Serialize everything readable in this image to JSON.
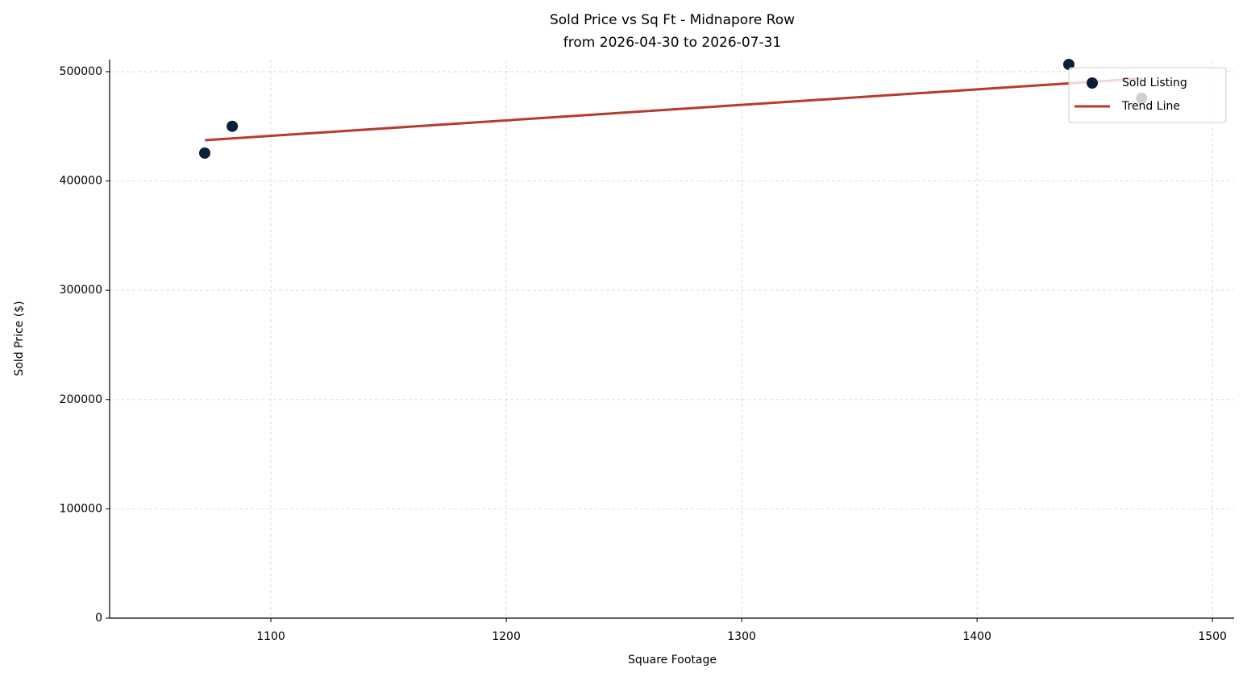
{
  "chart_data": {
    "type": "scatter",
    "title": "Sold Price vs Sq Ft - Midnapore Row",
    "subtitle": "from 2026-04-30 to 2026-07-31",
    "x_label": "Square Footage",
    "y_label": "Sold Price ($)",
    "xlim": [
      1031.5,
      1509.2
    ],
    "ylim": [
      0,
      511000
    ],
    "xticks": [
      1100,
      1200,
      1300,
      1400,
      1500
    ],
    "yticks": [
      0,
      100000,
      200000,
      300000,
      400000,
      500000
    ],
    "grid": true,
    "legend": "upper right",
    "series": [
      {
        "name": "Sold Listing",
        "type": "scatter",
        "color": "#0b1f3a",
        "x": [
          1071.9,
          1083.6,
          1439,
          1469.9
        ],
        "values": [
          425500,
          450000,
          506600,
          475700
        ]
      },
      {
        "name": "Trend Line",
        "type": "line",
        "color": "#b73a2c",
        "x": [
          1072,
          1470
        ],
        "values": [
          437300,
          493700
        ]
      }
    ]
  }
}
